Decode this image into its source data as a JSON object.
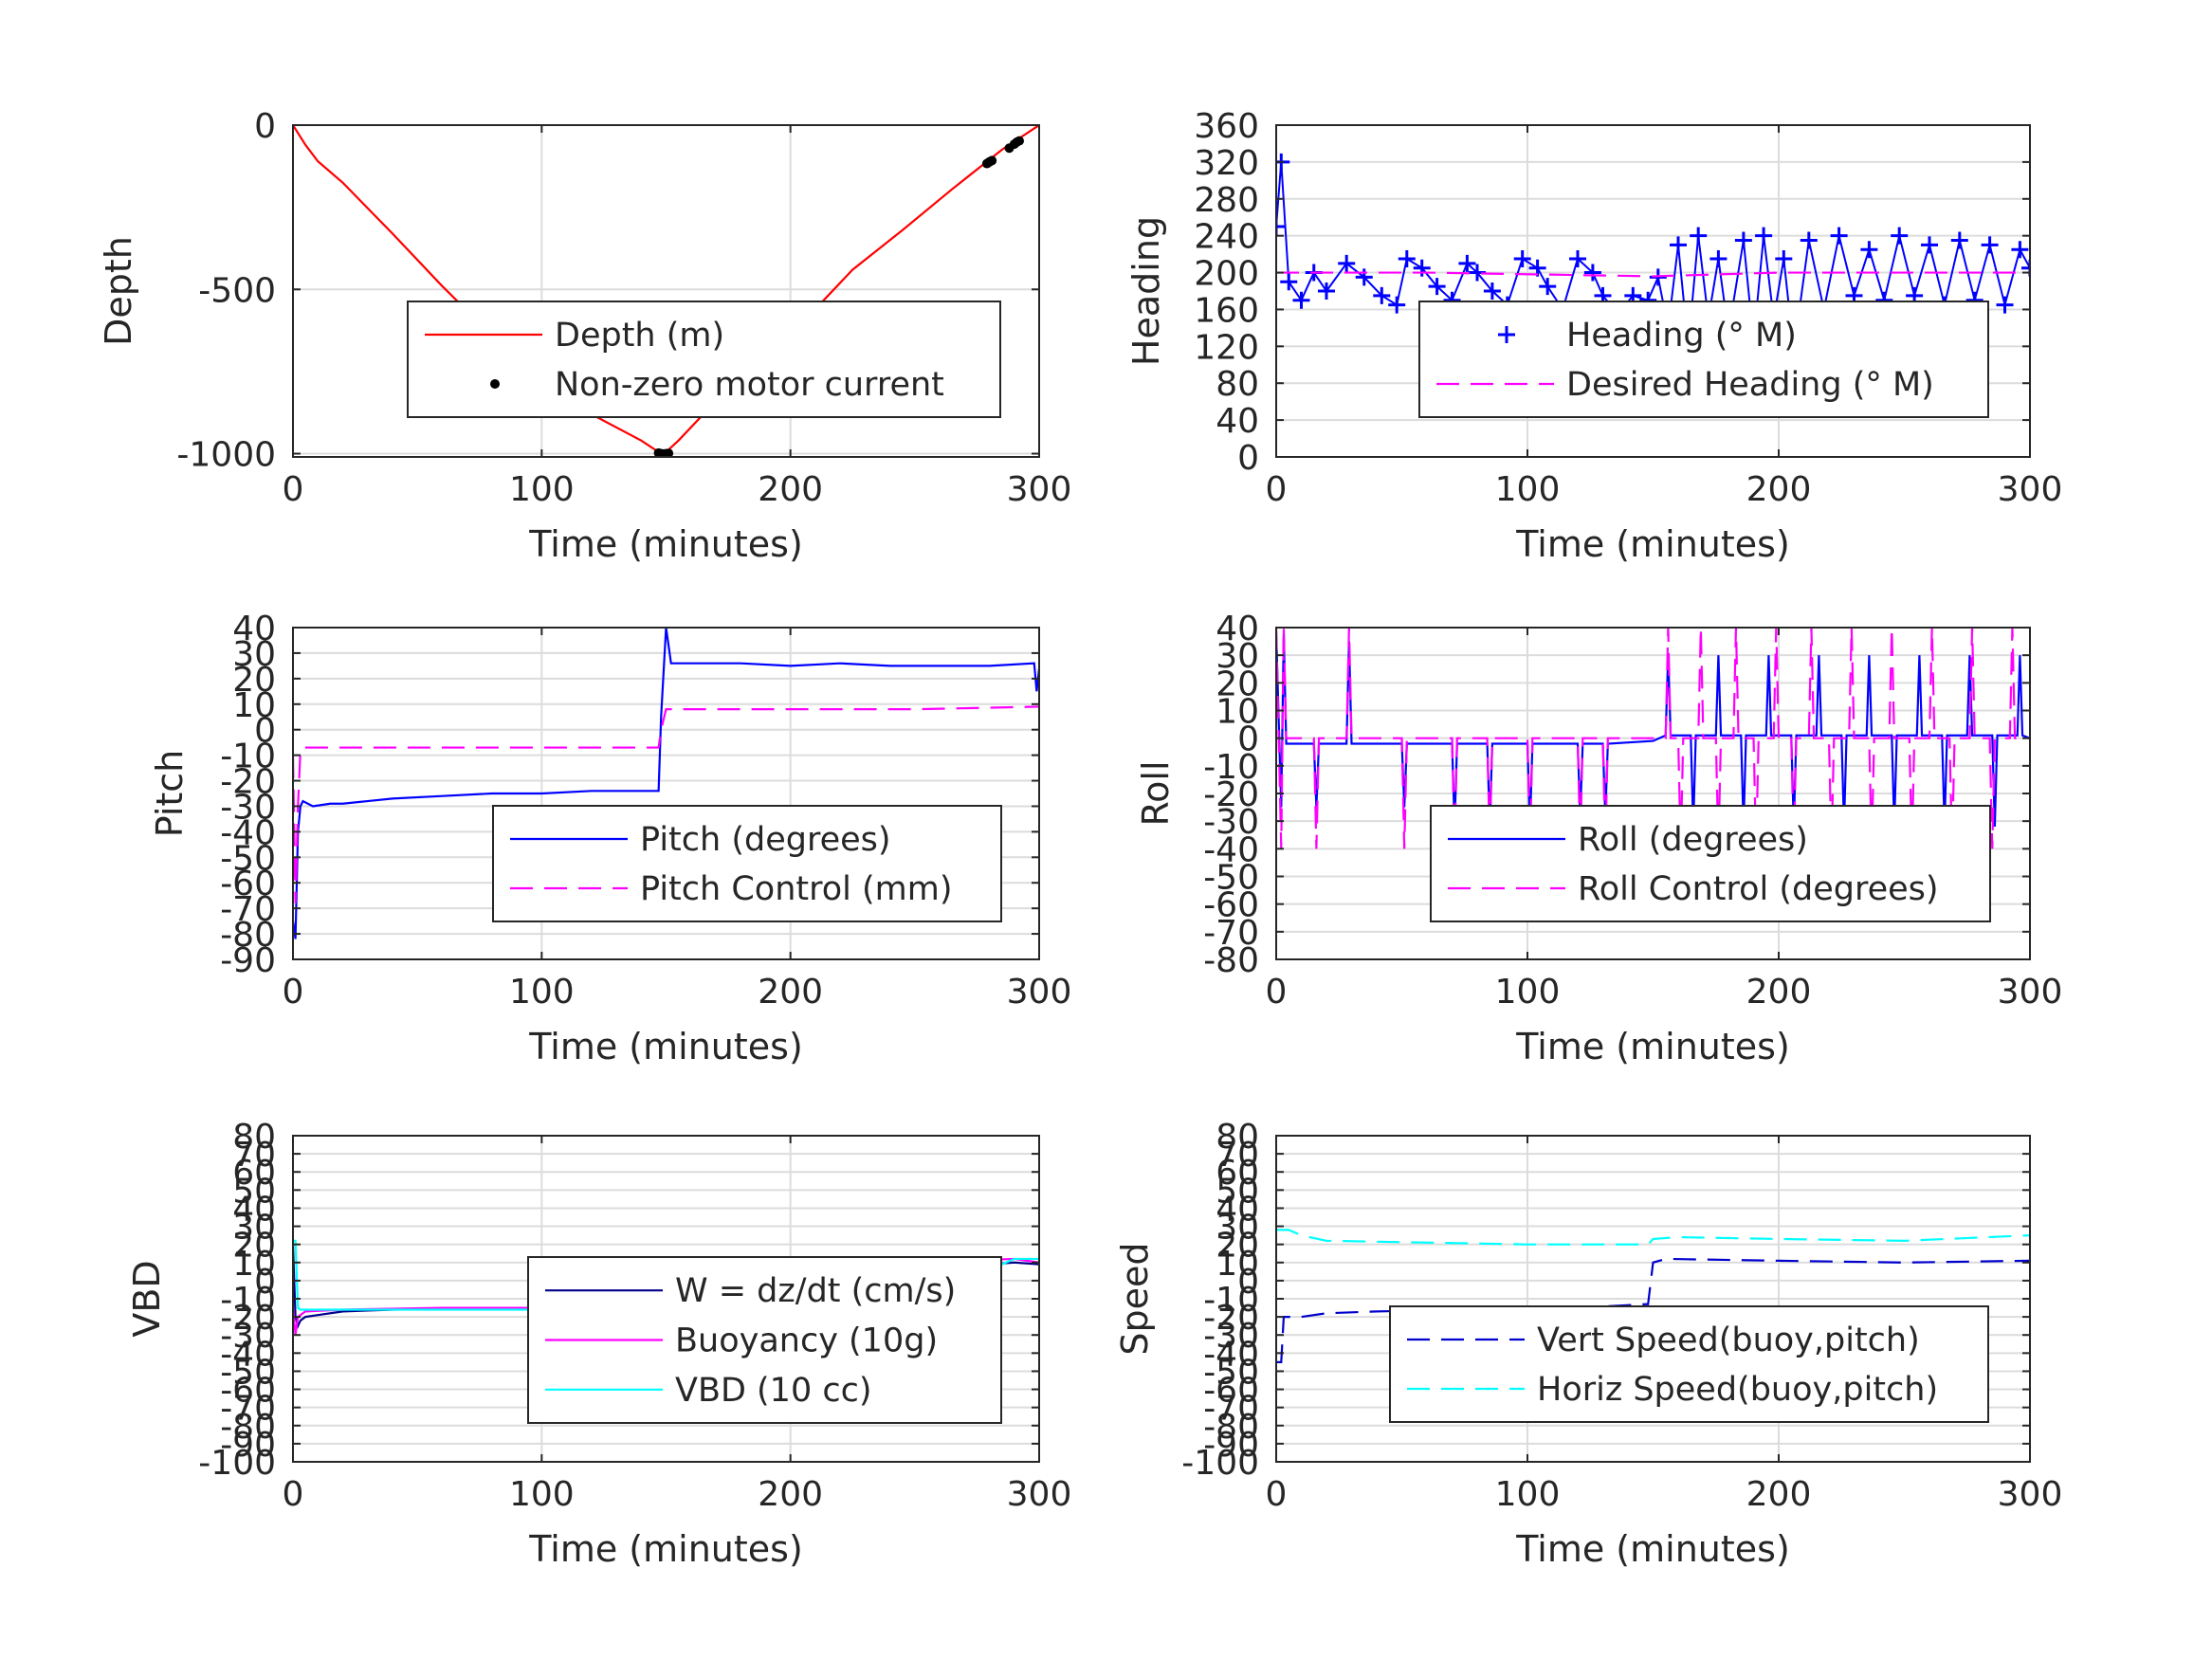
{
  "chart_data": [
    {
      "type": "line",
      "xlabel": "Time (minutes)",
      "ylabel": "Depth",
      "xlim": [
        0,
        300
      ],
      "ylim": [
        -1010,
        0
      ],
      "xticks": [
        0,
        100,
        200,
        300
      ],
      "yticks": [
        -1000,
        -500,
        0
      ],
      "yticklabels": [
        "-1000",
        "-500",
        "0"
      ],
      "grid": true,
      "legend_position": "center-right",
      "series": [
        {
          "name": "Depth (m)",
          "color": "#ff0000",
          "style": "solid",
          "x": [
            0,
            5,
            10,
            20,
            40,
            60,
            80,
            100,
            120,
            140,
            148,
            150,
            155,
            165,
            185,
            205,
            225,
            245,
            265,
            285,
            300
          ],
          "y": [
            0,
            -60,
            -110,
            -175,
            -330,
            -490,
            -640,
            -790,
            -880,
            -960,
            -1000,
            -995,
            -960,
            -880,
            -740,
            -600,
            -440,
            -320,
            -195,
            -75,
            0
          ]
        },
        {
          "name": "Non-zero motor current",
          "color": "#000000",
          "style": "marker-dot",
          "x": [
            147,
            148,
            149,
            150,
            151,
            279,
            280,
            281,
            288,
            290,
            291,
            292
          ],
          "y": [
            -998,
            -1000,
            -1001,
            -1000,
            -999,
            -117,
            -112,
            -108,
            -70,
            -58,
            -52,
            -48
          ]
        }
      ]
    },
    {
      "type": "line",
      "xlabel": "Time (minutes)",
      "ylabel": "Heading",
      "xlim": [
        0,
        300
      ],
      "ylim": [
        0,
        360
      ],
      "xticks": [
        0,
        100,
        200,
        300
      ],
      "yticks": [
        0,
        40,
        80,
        120,
        160,
        200,
        240,
        280,
        320,
        360
      ],
      "yticklabels": [
        "0",
        "40",
        "80",
        "120",
        "160",
        "200",
        "240",
        "280",
        "320",
        "360"
      ],
      "grid": true,
      "legend_position": "center-right",
      "series": [
        {
          "name": "Heading (° M)",
          "color": "#0000ff",
          "style": "marker-plus",
          "x": [
            0,
            2,
            5,
            10,
            15,
            20,
            28,
            35,
            42,
            48,
            52,
            58,
            64,
            70,
            76,
            80,
            86,
            92,
            98,
            104,
            108,
            114,
            120,
            126,
            130,
            136,
            142,
            148,
            152,
            156,
            160,
            164,
            168,
            172,
            176,
            180,
            186,
            190,
            194,
            198,
            202,
            206,
            212,
            218,
            224,
            230,
            236,
            242,
            248,
            254,
            260,
            266,
            272,
            278,
            284,
            290,
            296,
            300
          ],
          "y": [
            250,
            320,
            190,
            170,
            200,
            180,
            210,
            195,
            175,
            165,
            215,
            205,
            185,
            170,
            210,
            200,
            180,
            165,
            215,
            205,
            185,
            160,
            215,
            200,
            175,
            155,
            175,
            170,
            195,
            140,
            230,
            120,
            240,
            150,
            215,
            135,
            235,
            125,
            240,
            150,
            215,
            115,
            235,
            160,
            240,
            175,
            225,
            170,
            240,
            175,
            230,
            165,
            235,
            170,
            230,
            165,
            225,
            205
          ]
        },
        {
          "name": "Desired Heading (° M)",
          "color": "#ff00ff",
          "style": "dashed",
          "x": [
            0,
            60,
            150,
            200,
            250,
            300
          ],
          "y": [
            200,
            200,
            196,
            200,
            200,
            200
          ]
        }
      ]
    },
    {
      "type": "line",
      "xlabel": "Time (minutes)",
      "ylabel": "Pitch",
      "xlim": [
        0,
        300
      ],
      "ylim": [
        -90,
        40
      ],
      "xticks": [
        0,
        100,
        200,
        300
      ],
      "yticks": [
        -90,
        -80,
        -70,
        -60,
        -50,
        -40,
        -30,
        -20,
        -10,
        0,
        10,
        20,
        30,
        40
      ],
      "yticklabels": [
        "-90",
        "-80",
        "-70",
        "-60",
        "-50",
        "-40",
        "-30",
        "-20",
        "-10",
        "0",
        "10",
        "20",
        "30",
        "40"
      ],
      "grid": true,
      "legend_position": "bottom-right",
      "series": [
        {
          "name": "Pitch (degrees)",
          "color": "#0000ff",
          "style": "solid",
          "x": [
            0,
            1,
            2,
            3,
            4,
            8,
            15,
            20,
            30,
            40,
            60,
            80,
            100,
            120,
            140,
            147,
            148,
            150,
            152,
            160,
            180,
            200,
            220,
            240,
            260,
            280,
            298,
            299,
            300
          ],
          "y": [
            -75,
            -82,
            -40,
            -30,
            -28,
            -30,
            -29,
            -29,
            -28,
            -27,
            -26,
            -25,
            -25,
            -24,
            -24,
            -24,
            5,
            40,
            26,
            26,
            26,
            25,
            26,
            25,
            25,
            25,
            26,
            15,
            24
          ]
        },
        {
          "name": "Pitch Control (mm)",
          "color": "#ff00ff",
          "style": "dashed",
          "x": [
            0,
            1,
            2,
            3,
            4,
            10,
            60,
            120,
            147,
            148,
            150,
            200,
            250,
            300
          ],
          "y": [
            -10,
            -68,
            -30,
            -8,
            -7,
            -7,
            -7,
            -7,
            -7,
            0,
            8,
            8,
            8,
            9
          ]
        }
      ]
    },
    {
      "type": "line",
      "xlabel": "Time (minutes)",
      "ylabel": "Roll",
      "xlim": [
        0,
        300
      ],
      "ylim": [
        -80,
        40
      ],
      "xticks": [
        0,
        100,
        200,
        300
      ],
      "yticks": [
        -80,
        -70,
        -60,
        -50,
        -40,
        -30,
        -20,
        -10,
        0,
        10,
        20,
        30,
        40
      ],
      "yticklabels": [
        "-80",
        "-70",
        "-60",
        "-50",
        "-40",
        "-30",
        "-20",
        "-10",
        "0",
        "10",
        "20",
        "30",
        "40"
      ],
      "grid": true,
      "legend_position": "bottom-right",
      "series": [
        {
          "name": "Roll (degrees)",
          "color": "#0000ff",
          "style": "solid",
          "x": [
            0,
            2,
            3,
            4,
            6,
            15,
            16,
            17,
            28,
            29,
            30,
            50,
            51,
            52,
            70,
            71,
            72,
            84,
            85,
            86,
            100,
            101,
            102,
            120,
            121,
            122,
            130,
            131,
            132,
            150,
            155,
            156,
            157,
            165,
            166,
            167,
            175,
            176,
            177,
            185,
            186,
            187,
            195,
            196,
            197,
            205,
            206,
            207,
            215,
            216,
            217,
            225,
            226,
            227,
            235,
            236,
            237,
            245,
            246,
            247,
            255,
            256,
            257,
            265,
            266,
            267,
            275,
            276,
            277,
            285,
            286,
            287,
            295,
            296,
            297,
            300
          ],
          "y": [
            38,
            -25,
            38,
            -2,
            -2,
            -2,
            -25,
            -2,
            -2,
            35,
            -2,
            -2,
            -25,
            -2,
            -2,
            -32,
            -2,
            -2,
            -32,
            -2,
            -2,
            -32,
            -2,
            -2,
            -28,
            -2,
            -2,
            -28,
            -2,
            -1,
            1,
            30,
            1,
            1,
            -32,
            1,
            1,
            30,
            1,
            1,
            -32,
            1,
            1,
            30,
            1,
            1,
            -32,
            1,
            1,
            30,
            1,
            1,
            -32,
            1,
            1,
            30,
            1,
            1,
            -32,
            1,
            1,
            30,
            1,
            1,
            -32,
            1,
            1,
            30,
            1,
            1,
            -32,
            1,
            1,
            30,
            1,
            0
          ]
        },
        {
          "name": "Roll Control (degrees)",
          "color": "#ff00ff",
          "style": "dashed",
          "x": [
            0,
            2,
            3,
            4,
            6,
            15,
            16,
            17,
            28,
            29,
            30,
            50,
            51,
            52,
            70,
            71,
            72,
            84,
            85,
            86,
            100,
            101,
            102,
            120,
            121,
            122,
            130,
            131,
            132,
            150,
            155,
            156,
            157,
            160,
            161,
            162,
            168,
            169,
            170,
            175,
            176,
            177,
            182,
            183,
            184,
            190,
            191,
            192,
            198,
            199,
            200,
            205,
            206,
            207,
            212,
            213,
            214,
            220,
            221,
            222,
            228,
            229,
            230,
            236,
            237,
            238,
            244,
            245,
            246,
            252,
            253,
            254,
            260,
            261,
            262,
            268,
            269,
            270,
            276,
            277,
            278,
            284,
            285,
            286,
            292,
            293,
            294,
            300
          ],
          "y": [
            40,
            -40,
            40,
            0,
            0,
            0,
            -40,
            0,
            0,
            40,
            0,
            0,
            -40,
            0,
            0,
            -40,
            0,
            0,
            -40,
            0,
            0,
            -40,
            0,
            0,
            -40,
            0,
            0,
            -40,
            0,
            0,
            0,
            40,
            0,
            0,
            -40,
            0,
            0,
            40,
            0,
            0,
            -40,
            0,
            0,
            40,
            0,
            0,
            -40,
            0,
            0,
            40,
            0,
            0,
            -40,
            0,
            0,
            40,
            0,
            0,
            -40,
            0,
            0,
            40,
            0,
            0,
            -40,
            0,
            0,
            40,
            0,
            0,
            -40,
            0,
            0,
            40,
            0,
            0,
            -40,
            0,
            0,
            40,
            0,
            0,
            -40,
            0,
            0,
            40,
            0,
            0
          ]
        }
      ]
    },
    {
      "type": "line",
      "xlabel": "Time (minutes)",
      "ylabel": "VBD",
      "xlim": [
        0,
        300
      ],
      "ylim": [
        -100,
        80
      ],
      "xticks": [
        0,
        100,
        200,
        300
      ],
      "yticks": [
        -100,
        -90,
        -80,
        -70,
        -60,
        -50,
        -40,
        -30,
        -20,
        -10,
        0,
        10,
        20,
        30,
        40,
        50,
        60,
        70,
        80
      ],
      "yticklabels": [
        "-100",
        "-90",
        "-80",
        "-70",
        "-60",
        "-50",
        "-40",
        "-30",
        "-20",
        "-10",
        "0",
        "10",
        "20",
        "30",
        "40",
        "50",
        "60",
        "70",
        "80"
      ],
      "grid": true,
      "legend_position": "bottom-right",
      "series": [
        {
          "name": "W = dz/dt (cm/s)",
          "color": "#00008b",
          "style": "solid",
          "x": [
            0,
            1,
            2,
            3,
            5,
            10,
            20,
            40,
            80,
            120,
            147,
            148,
            150,
            155,
            200,
            250,
            280,
            290,
            300
          ],
          "y": [
            20,
            -20,
            -25,
            -22,
            -20,
            -19,
            -17,
            -16,
            -15,
            -15,
            -14,
            0,
            10,
            12,
            11,
            10,
            9,
            10,
            9
          ]
        },
        {
          "name": "Buoyancy (10g)",
          "color": "#ff00ff",
          "style": "solid",
          "x": [
            0,
            1,
            2,
            5,
            20,
            60,
            100,
            147,
            148,
            150,
            200,
            250,
            290,
            300
          ],
          "y": [
            -15,
            -30,
            -20,
            -17,
            -16,
            -15,
            -15,
            -15,
            0,
            10,
            10,
            10,
            12,
            10
          ]
        },
        {
          "name": "VBD (10 cc)",
          "color": "#00ffff",
          "style": "solid",
          "x": [
            0,
            1,
            2,
            3,
            10,
            60,
            100,
            147,
            148,
            150,
            200,
            250,
            280,
            290,
            300
          ],
          "y": [
            22,
            22,
            -15,
            -16,
            -16,
            -16,
            -16,
            -15,
            0,
            6,
            6,
            6,
            6,
            12,
            12
          ]
        }
      ]
    },
    {
      "type": "line",
      "xlabel": "Time (minutes)",
      "ylabel": "Speed",
      "xlim": [
        0,
        300
      ],
      "ylim": [
        -100,
        80
      ],
      "xticks": [
        0,
        100,
        200,
        300
      ],
      "yticks": [
        -100,
        -90,
        -80,
        -70,
        -60,
        -50,
        -40,
        -30,
        -20,
        -10,
        0,
        10,
        20,
        30,
        40,
        50,
        60,
        70,
        80
      ],
      "yticklabels": [
        "-100",
        "-90",
        "-80",
        "-70",
        "-60",
        "-50",
        "-40",
        "-30",
        "-20",
        "-10",
        "0",
        "10",
        "20",
        "30",
        "40",
        "50",
        "60",
        "70",
        "80"
      ],
      "grid": true,
      "legend_position": "bottom-right",
      "series": [
        {
          "name": "Vert Speed(buoy,pitch)",
          "color": "#0000cd",
          "style": "dashed",
          "x": [
            0,
            2,
            3,
            5,
            10,
            20,
            40,
            80,
            120,
            147,
            148,
            150,
            155,
            200,
            250,
            300
          ],
          "y": [
            -45,
            -45,
            -20,
            -20,
            -20,
            -18,
            -17,
            -16,
            -15,
            -13,
            -13,
            10,
            12,
            11,
            10,
            11
          ]
        },
        {
          "name": "Horiz Speed(buoy,pitch)",
          "color": "#00ffff",
          "style": "dashed",
          "x": [
            0,
            5,
            10,
            20,
            60,
            100,
            147,
            148,
            150,
            160,
            200,
            250,
            300
          ],
          "y": [
            28,
            28,
            25,
            22,
            21,
            20,
            20,
            20,
            23,
            24,
            23,
            22,
            25
          ]
        }
      ]
    }
  ]
}
